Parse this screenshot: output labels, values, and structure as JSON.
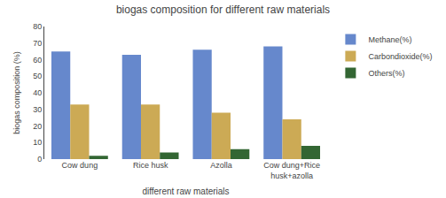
{
  "chart_data": {
    "type": "bar",
    "title": "biogas composition for different raw materials",
    "xlabel": "different raw materials",
    "ylabel": "biogas composition (%)",
    "categories": [
      "Cow dung",
      "Rice husk",
      "Azolla",
      "Cow dung+Rice\nhusk+azolla"
    ],
    "series": [
      {
        "name": "Methane(%)",
        "color": "#6688cc",
        "values": [
          65,
          63,
          66,
          68
        ]
      },
      {
        "name": "Carbondioxide(%)",
        "color": "#ccaa55",
        "values": [
          33,
          33,
          28,
          24
        ]
      },
      {
        "name": "Others(%)",
        "color": "#336633",
        "values": [
          2,
          4,
          6,
          8
        ]
      }
    ],
    "ylim": [
      0,
      80
    ],
    "yticks": [
      0,
      10,
      20,
      30,
      40,
      50,
      60,
      70,
      80
    ],
    "grid": false,
    "legend": "upper right"
  }
}
